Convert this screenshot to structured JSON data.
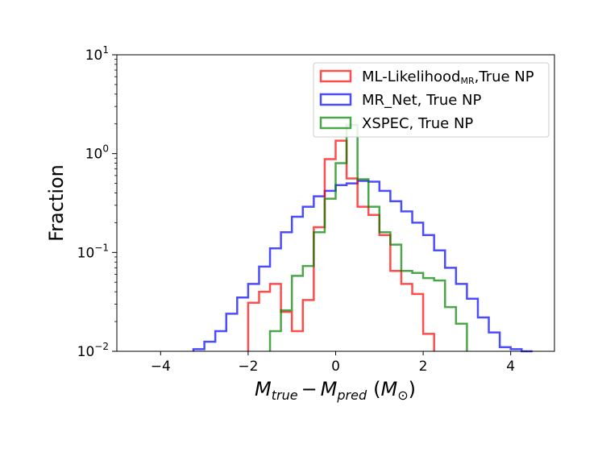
{
  "chart_data": {
    "type": "histogram",
    "title": "",
    "xlabel_parts": {
      "var1": "M",
      "sub1": "true",
      "minus": "−",
      "var2": "M",
      "sub2": "pred",
      "paren_open": "(",
      "unit": "M",
      "unit_sub": "⊙",
      "paren_close": ")"
    },
    "ylabel": "Fraction",
    "xlim": [
      -5,
      5
    ],
    "ylim": [
      0.01,
      10
    ],
    "yscale": "log",
    "bin_width": 0.25,
    "x_ticks": [
      {
        "value": -4,
        "label": "−4"
      },
      {
        "value": -2,
        "label": "−2"
      },
      {
        "value": 0,
        "label": "0"
      },
      {
        "value": 2,
        "label": "2"
      },
      {
        "value": 4,
        "label": "4"
      }
    ],
    "y_ticks": [
      {
        "value": 0.01,
        "base": "10",
        "exp": "−2"
      },
      {
        "value": 0.1,
        "base": "10",
        "exp": "−1"
      },
      {
        "value": 1,
        "base": "10",
        "exp": "0"
      },
      {
        "value": 10,
        "base": "10",
        "exp": "1"
      }
    ],
    "legend": {
      "position": "top-right",
      "entries": [
        {
          "series": "ml",
          "main": "ML-Likelihood",
          "sub": "MR",
          "suffix": ",True NP"
        },
        {
          "series": "mrnet",
          "main": "MR_Net, True NP",
          "sub": "",
          "suffix": ""
        },
        {
          "series": "xspec",
          "main": "XSPEC, True NP",
          "sub": "",
          "suffix": ""
        }
      ]
    },
    "series": [
      {
        "id": "mrnet",
        "name": "MR_Net, True NP",
        "color": "#0000ff",
        "x_start": -3.25,
        "values": [
          0.0105,
          0.0125,
          0.016,
          0.024,
          0.035,
          0.048,
          0.072,
          0.11,
          0.16,
          0.23,
          0.29,
          0.37,
          0.42,
          0.48,
          0.5,
          0.53,
          0.52,
          0.42,
          0.33,
          0.26,
          0.2,
          0.15,
          0.105,
          0.07,
          0.048,
          0.034,
          0.022,
          0.0155,
          0.011,
          0.0105,
          0.0095
        ]
      },
      {
        "id": "ml",
        "name": "ML-Likelihood MR, True NP",
        "color": "#ff0000",
        "x_start": -2.0,
        "values": [
          0.031,
          0.04,
          0.048,
          0.025,
          0.016,
          0.033,
          0.18,
          0.88,
          1.35,
          0.56,
          0.29,
          0.24,
          0.15,
          0.065,
          0.048,
          0.038,
          0.015
        ]
      },
      {
        "id": "xspec",
        "name": "XSPEC, True NP",
        "color": "#008000",
        "x_start": -1.5,
        "values": [
          0.016,
          0.026,
          0.058,
          0.073,
          0.16,
          0.35,
          0.8,
          1.95,
          0.55,
          0.29,
          0.16,
          0.12,
          0.065,
          0.062,
          0.055,
          0.052,
          0.028,
          0.019
        ]
      }
    ]
  }
}
